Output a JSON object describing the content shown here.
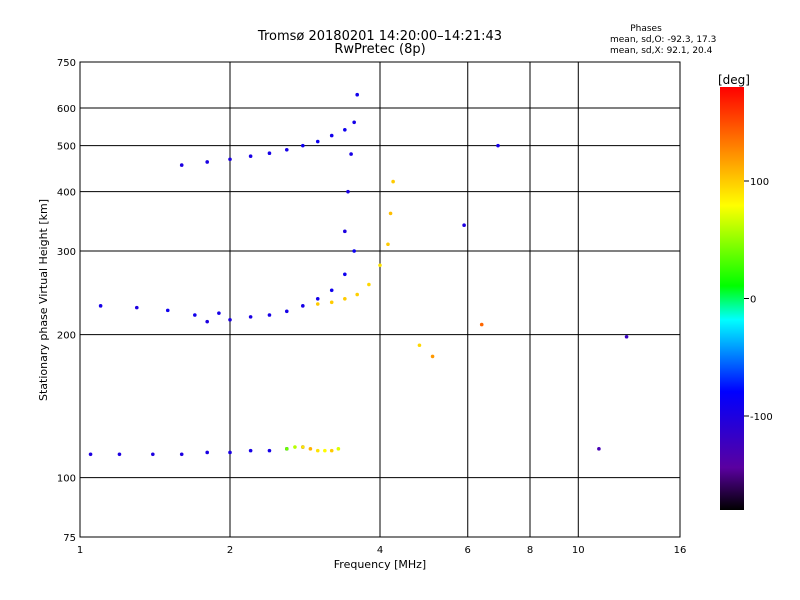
{
  "chart_data": {
    "type": "scatter",
    "title": "Tromsø 20180201 14:20:00–14:21:43",
    "subtitle": "RwPretec (8p)",
    "phases_box": {
      "heading": "Phases",
      "line1": "mean, sd,O: -92.3, 17.3",
      "line2": "mean, sd,X:  92.1, 20.4"
    },
    "xlabel": "Frequency [MHz]",
    "ylabel": "Stationary phase Virtual Height [km]",
    "x_scale": "log",
    "y_scale": "log",
    "xlim": [
      1,
      16
    ],
    "ylim": [
      75,
      750
    ],
    "x_ticks": [
      1,
      2,
      4,
      6,
      8,
      10,
      16
    ],
    "y_ticks": [
      75,
      100,
      200,
      300,
      400,
      500,
      600,
      750
    ],
    "grid": true,
    "colorbar": {
      "label": "[deg]",
      "range": [
        -180,
        180
      ],
      "ticks": [
        100,
        0,
        -100
      ],
      "stops": [
        "#000000",
        "#5a00a0",
        "#0000ff",
        "#00ffff",
        "#00ff00",
        "#ffff00",
        "#ff8000",
        "#ff0000"
      ]
    },
    "series": [
      {
        "x": [
          1.05,
          1.2,
          1.4,
          1.6,
          1.8,
          2.0,
          2.2,
          2.4,
          2.6,
          2.8
        ],
        "y": [
          112,
          112,
          112,
          112,
          113,
          113,
          114,
          114,
          115,
          116
        ],
        "phase": [
          -100,
          -100,
          -100,
          -100,
          -98,
          -98,
          -96,
          -95,
          -92,
          -90
        ]
      },
      {
        "x": [
          2.6,
          2.7,
          2.8,
          2.9,
          3.0,
          3.1,
          3.2,
          3.3
        ],
        "y": [
          115,
          116,
          116,
          115,
          114,
          114,
          114,
          115
        ],
        "phase": [
          40,
          60,
          90,
          110,
          90,
          80,
          100,
          70
        ]
      },
      {
        "x": [
          1.8,
          2.0,
          2.2,
          2.4,
          2.6,
          2.8,
          3.0,
          3.2,
          3.4,
          3.55
        ],
        "y": [
          213,
          215,
          218,
          220,
          224,
          230,
          238,
          248,
          268,
          300
        ],
        "phase": [
          -100,
          -100,
          -98,
          -96,
          -95,
          -95,
          -93,
          -90,
          -90,
          -88
        ]
      },
      {
        "x": [
          3.0,
          3.2,
          3.4,
          3.6,
          3.8,
          4.0
        ],
        "y": [
          232,
          234,
          238,
          243,
          255,
          280
        ],
        "phase": [
          100,
          100,
          100,
          98,
          95,
          90
        ]
      },
      {
        "x": [
          3.4,
          3.45,
          3.5,
          3.55,
          3.6
        ],
        "y": [
          330,
          400,
          480,
          560,
          640
        ],
        "phase": [
          -100,
          -98,
          -96,
          -95,
          -92
        ]
      },
      {
        "x": [
          4.15,
          4.2,
          4.25
        ],
        "y": [
          310,
          360,
          420
        ],
        "phase": [
          100,
          105,
          100
        ]
      },
      {
        "x": [
          1.6,
          1.8,
          2.0,
          2.2,
          2.4,
          2.6,
          2.8,
          3.0,
          3.2,
          3.4
        ],
        "y": [
          455,
          462,
          468,
          475,
          482,
          490,
          500,
          510,
          525,
          540
        ],
        "phase": [
          -100,
          -98,
          -100,
          -97,
          -95,
          -95,
          -90,
          -88,
          -92,
          -90
        ]
      },
      {
        "x": [
          1.1,
          1.3,
          1.5,
          1.7,
          1.9
        ],
        "y": [
          230,
          228,
          225,
          220,
          222
        ],
        "phase": [
          -95,
          -100,
          -90,
          -92,
          -95
        ]
      },
      {
        "x": [
          5.9,
          6.4,
          6.9
        ],
        "y": [
          340,
          210,
          500
        ],
        "phase": [
          -100,
          140,
          -95
        ]
      },
      {
        "x": [
          4.8,
          5.1,
          11.0,
          12.5
        ],
        "y": [
          190,
          180,
          115,
          198
        ],
        "phase": [
          95,
          120,
          -130,
          -120
        ]
      }
    ]
  }
}
